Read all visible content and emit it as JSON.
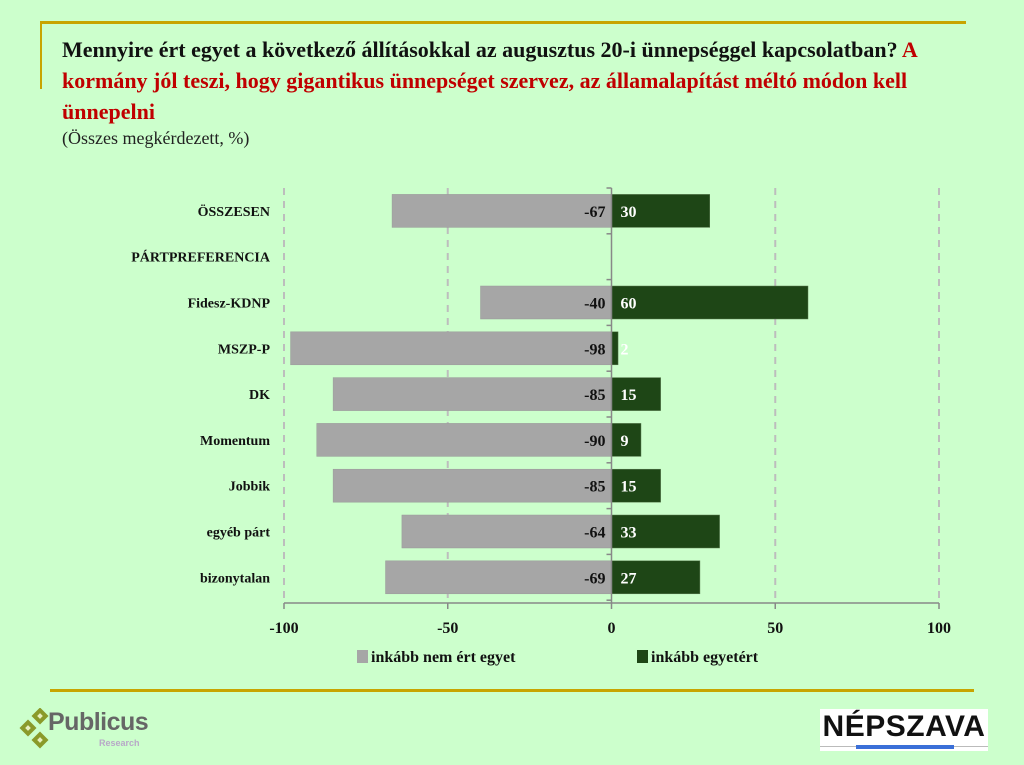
{
  "title": {
    "question": "Mennyire ért egyet a következő állításokkal az augusztus 20-i ünnepséggel kapcsolatban?",
    "statement": "A kormány jól teszi, hogy gigantikus ünnepséget szervez, az államalapítást méltó módon kell ünnepelni",
    "subtitle": "(Összes megkérdezett, %)"
  },
  "colors": {
    "background": "#ccffcc",
    "disagree": "#a6a6a6",
    "agree": "#1e4616",
    "accent_rule": "#c8a400",
    "statement_red": "#c00000"
  },
  "chart_data": {
    "type": "bar",
    "orientation": "horizontal-diverging",
    "title": "Mennyire ért egyet a következő állításokkal az augusztus 20-i ünnepséggel kapcsolatban? A kormány jól teszi, hogy gigantikus ünnepséget szervez, az államalapítást méltó módon kell ünnepelni",
    "subtitle": "(Összes megkérdezett, %)",
    "categories": [
      "ÖSSZESEN",
      "PÁRTPREFERENCIA",
      "Fidesz-KDNP",
      "MSZP-P",
      "DK",
      "Momentum",
      "Jobbik",
      "egyéb párt",
      "bizonytalan"
    ],
    "series": [
      {
        "name": "inkább nem ért egyet",
        "values": [
          -67,
          null,
          -40,
          -98,
          -85,
          -90,
          -85,
          -64,
          -69
        ]
      },
      {
        "name": "inkább egyetért",
        "values": [
          30,
          null,
          60,
          2,
          15,
          9,
          15,
          33,
          27
        ]
      }
    ],
    "xlim": [
      -100,
      100
    ],
    "xticks": [
      -100,
      -50,
      0,
      50,
      100
    ],
    "xtick_labels": [
      "-100",
      "-50",
      "0",
      "50",
      "100"
    ],
    "xlabel": "",
    "ylabel": "",
    "grid": "vertical dashed",
    "legend": "bottom-center"
  },
  "logos": {
    "left": {
      "name": "Publicus",
      "sub": "Research"
    },
    "right": {
      "name": "NÉPSZAVA"
    }
  }
}
